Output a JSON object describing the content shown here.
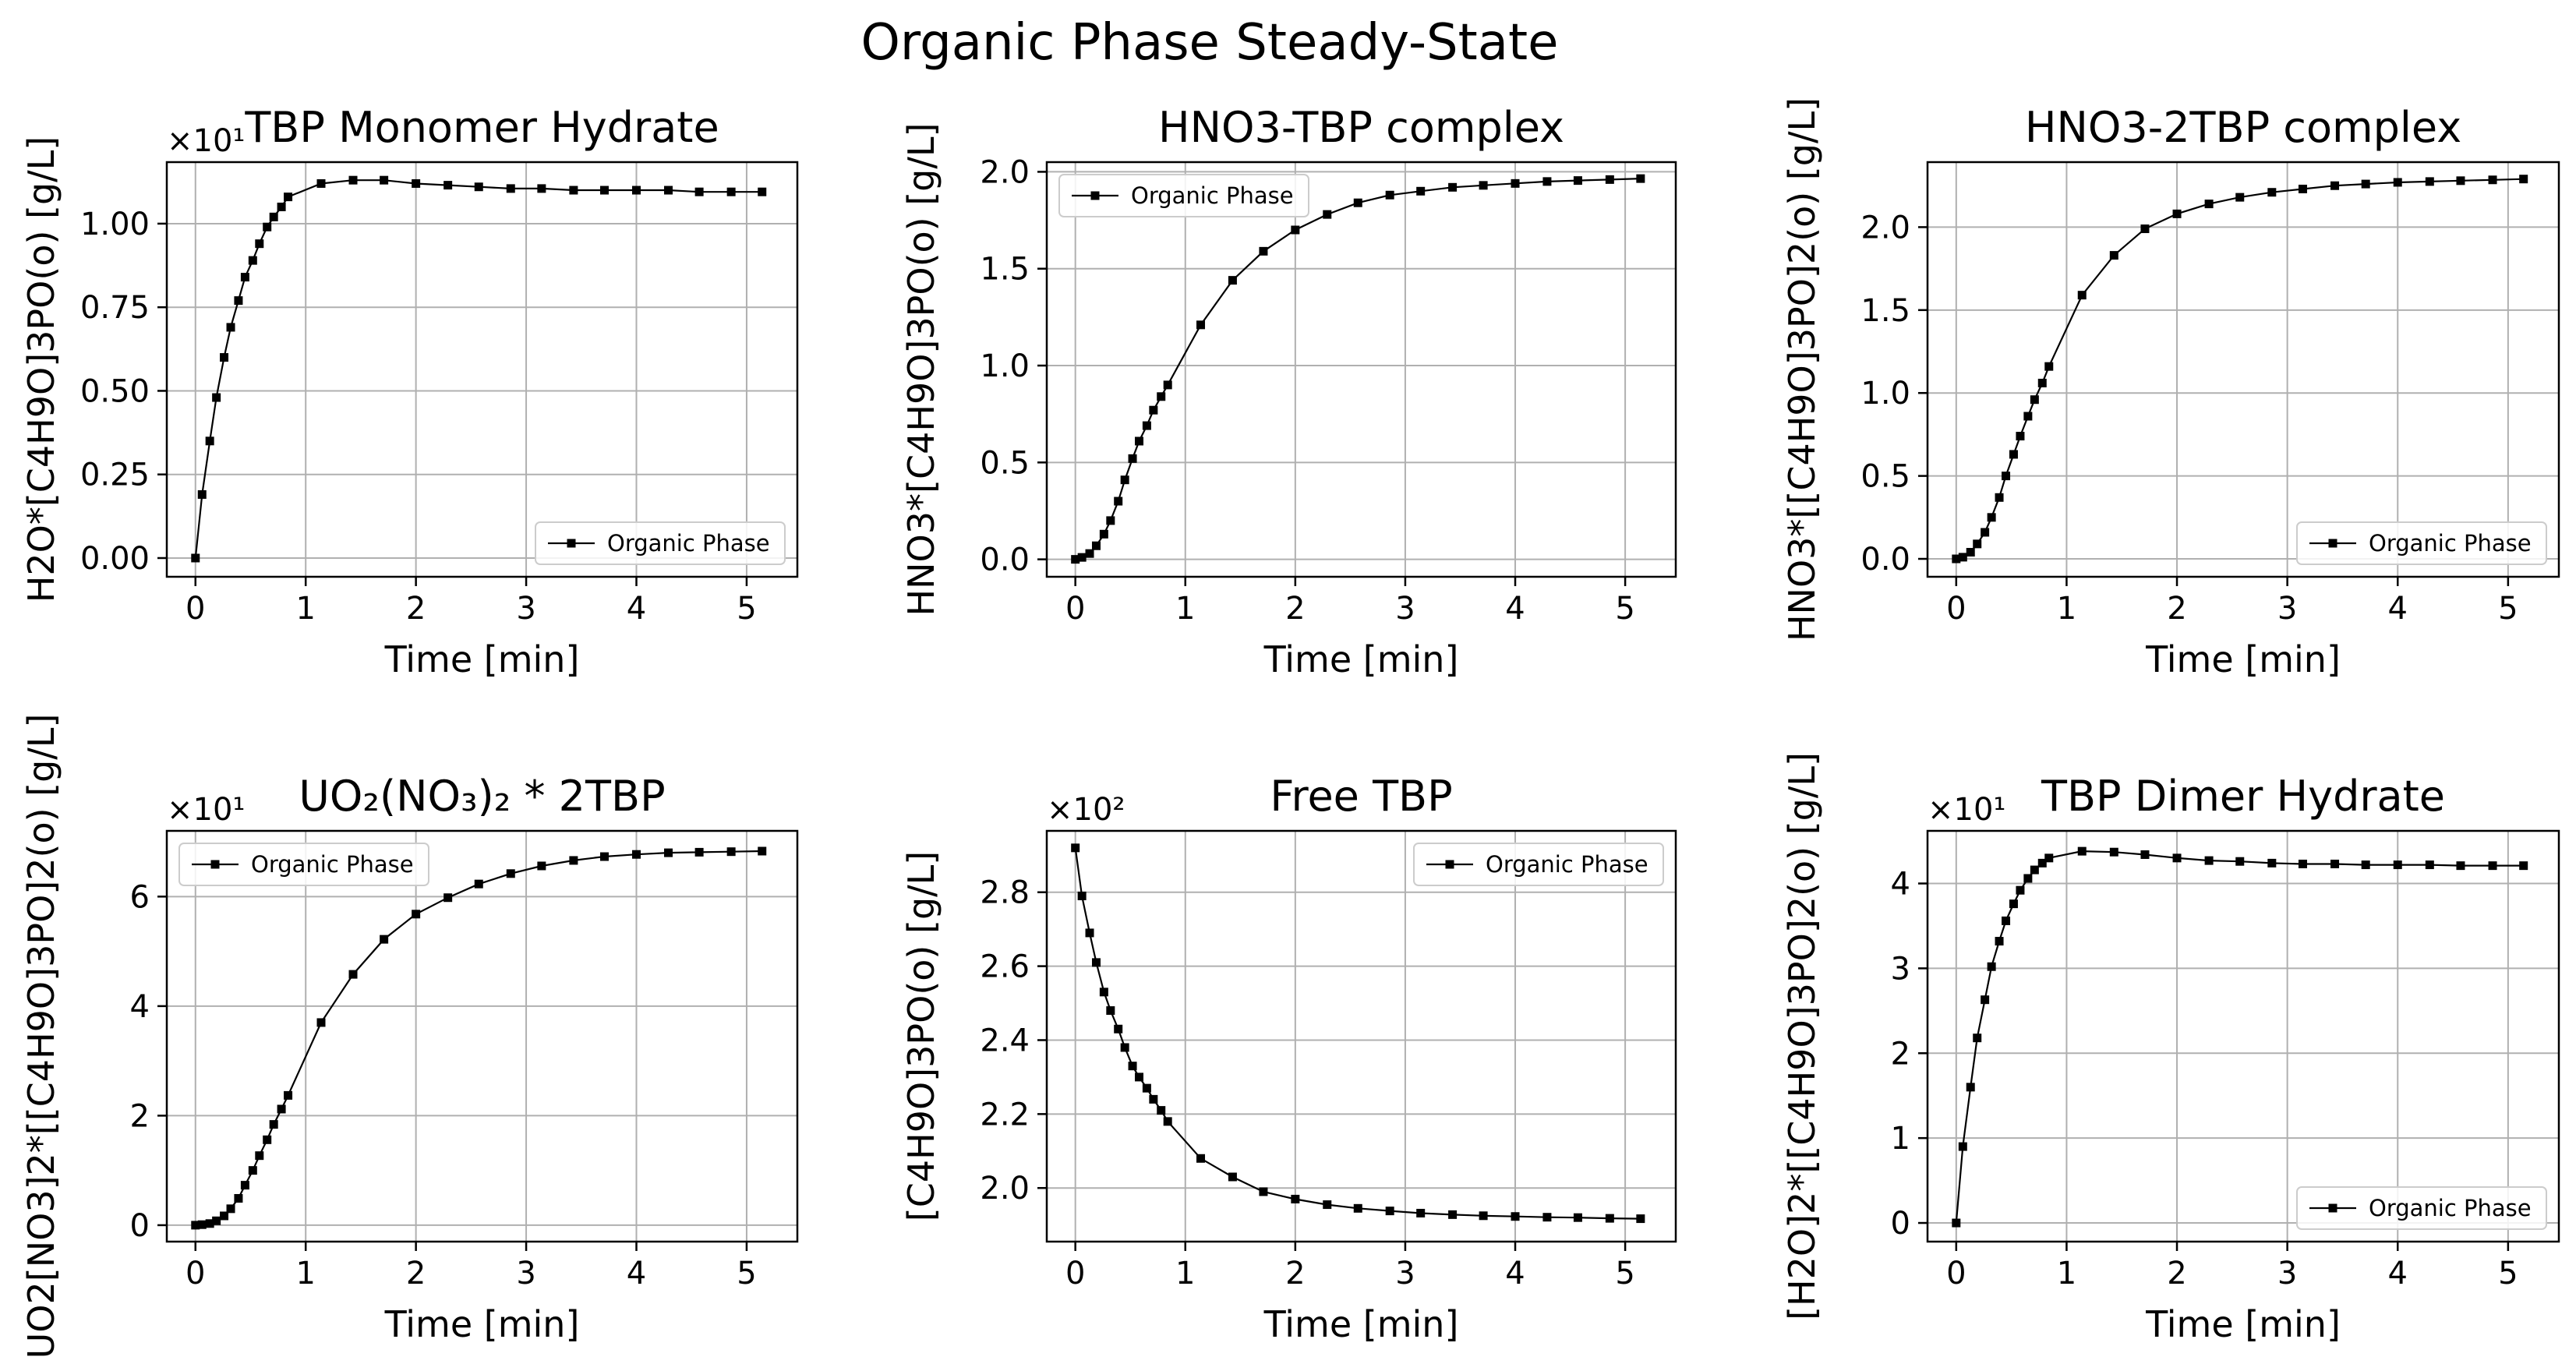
{
  "figure": {
    "title": "Organic Phase Steady-State"
  },
  "chart_data": [
    {
      "type": "line",
      "title": "TBP Monomer Hydrate",
      "xlabel": "Time [min]",
      "ylabel": "H2O*[C4H9O]3PO(o) [g/L]",
      "offset_text": "×10¹",
      "xlim": [
        -0.26,
        5.46
      ],
      "ylim": [
        -0.056,
        1.184
      ],
      "xticks": [
        0,
        1,
        2,
        3,
        4,
        5
      ],
      "xtick_labels": [
        "0",
        "1",
        "2",
        "3",
        "4",
        "5"
      ],
      "yticks": [
        0,
        0.25,
        0.5,
        0.75,
        1.0
      ],
      "ytick_labels": [
        "0.00",
        "0.25",
        "0.50",
        "0.75",
        "1.00"
      ],
      "grid": true,
      "legend_position": "lower-right",
      "series": [
        {
          "name": "Organic Phase",
          "x": [
            0.0,
            0.06,
            0.13,
            0.19,
            0.26,
            0.32,
            0.39,
            0.45,
            0.52,
            0.58,
            0.65,
            0.71,
            0.78,
            0.84,
            1.14,
            1.43,
            1.71,
            2.0,
            2.29,
            2.57,
            2.86,
            3.14,
            3.43,
            3.71,
            4.0,
            4.29,
            4.57,
            4.86,
            5.14
          ],
          "y": [
            0.0,
            0.19,
            0.35,
            0.48,
            0.6,
            0.69,
            0.77,
            0.84,
            0.89,
            0.94,
            0.99,
            1.02,
            1.05,
            1.08,
            1.12,
            1.13,
            1.13,
            1.12,
            1.115,
            1.11,
            1.105,
            1.105,
            1.1,
            1.1,
            1.1,
            1.1,
            1.095,
            1.095,
            1.095
          ]
        }
      ]
    },
    {
      "type": "line",
      "title": "HNO3-TBP complex",
      "xlabel": "Time [min]",
      "ylabel": "HNO3*[C4H9O]3PO(o) [g/L]",
      "offset_text": "",
      "xlim": [
        -0.26,
        5.46
      ],
      "ylim": [
        -0.09,
        2.05
      ],
      "xticks": [
        0,
        1,
        2,
        3,
        4,
        5
      ],
      "xtick_labels": [
        "0",
        "1",
        "2",
        "3",
        "4",
        "5"
      ],
      "yticks": [
        0,
        0.5,
        1.0,
        1.5,
        2.0
      ],
      "ytick_labels": [
        "0.0",
        "0.5",
        "1.0",
        "1.5",
        "2.0"
      ],
      "grid": true,
      "legend_position": "upper-left",
      "series": [
        {
          "name": "Organic Phase",
          "x": [
            0.0,
            0.06,
            0.13,
            0.19,
            0.26,
            0.32,
            0.39,
            0.45,
            0.52,
            0.58,
            0.65,
            0.71,
            0.78,
            0.84,
            1.14,
            1.43,
            1.71,
            2.0,
            2.29,
            2.57,
            2.86,
            3.14,
            3.43,
            3.71,
            4.0,
            4.29,
            4.57,
            4.86,
            5.14
          ],
          "y": [
            0.0,
            0.01,
            0.03,
            0.07,
            0.13,
            0.2,
            0.3,
            0.41,
            0.52,
            0.61,
            0.69,
            0.77,
            0.84,
            0.9,
            1.21,
            1.44,
            1.59,
            1.7,
            1.78,
            1.84,
            1.88,
            1.9,
            1.92,
            1.93,
            1.94,
            1.95,
            1.955,
            1.96,
            1.965
          ]
        }
      ]
    },
    {
      "type": "line",
      "title": "HNO3-2TBP complex",
      "xlabel": "Time [min]",
      "ylabel": "HNO3*[[C4H9O]3PO]2(o) [g/L]",
      "offset_text": "",
      "xlim": [
        -0.26,
        5.46
      ],
      "ylim": [
        -0.108,
        2.392
      ],
      "xticks": [
        0,
        1,
        2,
        3,
        4,
        5
      ],
      "xtick_labels": [
        "0",
        "1",
        "2",
        "3",
        "4",
        "5"
      ],
      "yticks": [
        0,
        0.5,
        1.0,
        1.5,
        2.0
      ],
      "ytick_labels": [
        "0.0",
        "0.5",
        "1.0",
        "1.5",
        "2.0"
      ],
      "grid": true,
      "legend_position": "lower-right",
      "series": [
        {
          "name": "Organic Phase",
          "x": [
            0.0,
            0.06,
            0.13,
            0.19,
            0.26,
            0.32,
            0.39,
            0.45,
            0.52,
            0.58,
            0.65,
            0.71,
            0.78,
            0.84,
            1.14,
            1.43,
            1.71,
            2.0,
            2.29,
            2.57,
            2.86,
            3.14,
            3.43,
            3.71,
            4.0,
            4.29,
            4.57,
            4.86,
            5.14
          ],
          "y": [
            0.0,
            0.01,
            0.04,
            0.09,
            0.16,
            0.25,
            0.37,
            0.5,
            0.63,
            0.74,
            0.86,
            0.96,
            1.06,
            1.16,
            1.59,
            1.83,
            1.99,
            2.08,
            2.14,
            2.18,
            2.21,
            2.23,
            2.25,
            2.26,
            2.27,
            2.275,
            2.28,
            2.285,
            2.29
          ]
        }
      ]
    },
    {
      "type": "line",
      "title": "UO₂(NO₃)₂ * 2TBP",
      "xlabel": "Time [min]",
      "ylabel": "UO2[NO3]2*[[C4H9O]3PO]2(o) [g/L]",
      "offset_text": "×10¹",
      "xlim": [
        -0.26,
        5.46
      ],
      "ylim": [
        -0.3,
        7.2
      ],
      "xticks": [
        0,
        1,
        2,
        3,
        4,
        5
      ],
      "xtick_labels": [
        "0",
        "1",
        "2",
        "3",
        "4",
        "5"
      ],
      "yticks": [
        0,
        2,
        4,
        6
      ],
      "ytick_labels": [
        "0",
        "2",
        "4",
        "6"
      ],
      "grid": true,
      "legend_position": "upper-left",
      "series": [
        {
          "name": "Organic Phase",
          "x": [
            0.0,
            0.06,
            0.13,
            0.19,
            0.26,
            0.32,
            0.39,
            0.45,
            0.52,
            0.58,
            0.65,
            0.71,
            0.78,
            0.84,
            1.14,
            1.43,
            1.71,
            2.0,
            2.29,
            2.57,
            2.86,
            3.14,
            3.43,
            3.71,
            4.0,
            4.29,
            4.57,
            4.86,
            5.14
          ],
          "y": [
            0.0,
            0.01,
            0.03,
            0.08,
            0.17,
            0.3,
            0.49,
            0.73,
            1.0,
            1.27,
            1.56,
            1.84,
            2.12,
            2.37,
            3.7,
            4.58,
            5.22,
            5.68,
            5.98,
            6.23,
            6.42,
            6.56,
            6.66,
            6.73,
            6.77,
            6.8,
            6.81,
            6.82,
            6.83
          ]
        }
      ]
    },
    {
      "type": "line",
      "title": "Free TBP",
      "xlabel": "Time [min]",
      "ylabel": "[C4H9O]3PO(o) [g/L]",
      "offset_text": "×10²",
      "xlim": [
        -0.26,
        5.46
      ],
      "ylim": [
        1.855,
        2.966
      ],
      "xticks": [
        0,
        1,
        2,
        3,
        4,
        5
      ],
      "xtick_labels": [
        "0",
        "1",
        "2",
        "3",
        "4",
        "5"
      ],
      "yticks": [
        2.0,
        2.2,
        2.4,
        2.6,
        2.8
      ],
      "ytick_labels": [
        "2.0",
        "2.2",
        "2.4",
        "2.6",
        "2.8"
      ],
      "grid": true,
      "legend_position": "upper-right",
      "series": [
        {
          "name": "Organic Phase",
          "x": [
            0.0,
            0.06,
            0.13,
            0.19,
            0.26,
            0.32,
            0.39,
            0.45,
            0.52,
            0.58,
            0.65,
            0.71,
            0.78,
            0.84,
            1.14,
            1.43,
            1.71,
            2.0,
            2.29,
            2.57,
            2.86,
            3.14,
            3.43,
            3.71,
            4.0,
            4.29,
            4.57,
            4.86,
            5.14
          ],
          "y": [
            2.92,
            2.79,
            2.69,
            2.61,
            2.53,
            2.48,
            2.43,
            2.38,
            2.33,
            2.3,
            2.27,
            2.24,
            2.21,
            2.18,
            2.08,
            2.03,
            1.99,
            1.97,
            1.955,
            1.945,
            1.938,
            1.932,
            1.928,
            1.925,
            1.923,
            1.921,
            1.92,
            1.918,
            1.917
          ]
        }
      ]
    },
    {
      "type": "line",
      "title": "TBP Dimer Hydrate",
      "xlabel": "Time [min]",
      "ylabel": "[H2O]2*[[C4H9O]3PO]2(o) [g/L]",
      "offset_text": "×10¹",
      "xlim": [
        -0.26,
        5.46
      ],
      "ylim": [
        -0.22,
        4.62
      ],
      "xticks": [
        0,
        1,
        2,
        3,
        4,
        5
      ],
      "xtick_labels": [
        "0",
        "1",
        "2",
        "3",
        "4",
        "5"
      ],
      "yticks": [
        0,
        1,
        2,
        3,
        4
      ],
      "ytick_labels": [
        "0",
        "1",
        "2",
        "3",
        "4"
      ],
      "grid": true,
      "legend_position": "lower-right",
      "series": [
        {
          "name": "Organic Phase",
          "x": [
            0.0,
            0.06,
            0.13,
            0.19,
            0.26,
            0.32,
            0.39,
            0.45,
            0.52,
            0.58,
            0.65,
            0.71,
            0.78,
            0.84,
            1.14,
            1.43,
            1.71,
            2.0,
            2.29,
            2.57,
            2.86,
            3.14,
            3.43,
            3.71,
            4.0,
            4.29,
            4.57,
            4.86,
            5.14
          ],
          "y": [
            0.0,
            0.9,
            1.6,
            2.18,
            2.63,
            3.02,
            3.32,
            3.56,
            3.76,
            3.92,
            4.06,
            4.16,
            4.24,
            4.3,
            4.38,
            4.37,
            4.34,
            4.3,
            4.27,
            4.26,
            4.24,
            4.23,
            4.23,
            4.22,
            4.22,
            4.22,
            4.21,
            4.21,
            4.21
          ]
        }
      ]
    }
  ]
}
